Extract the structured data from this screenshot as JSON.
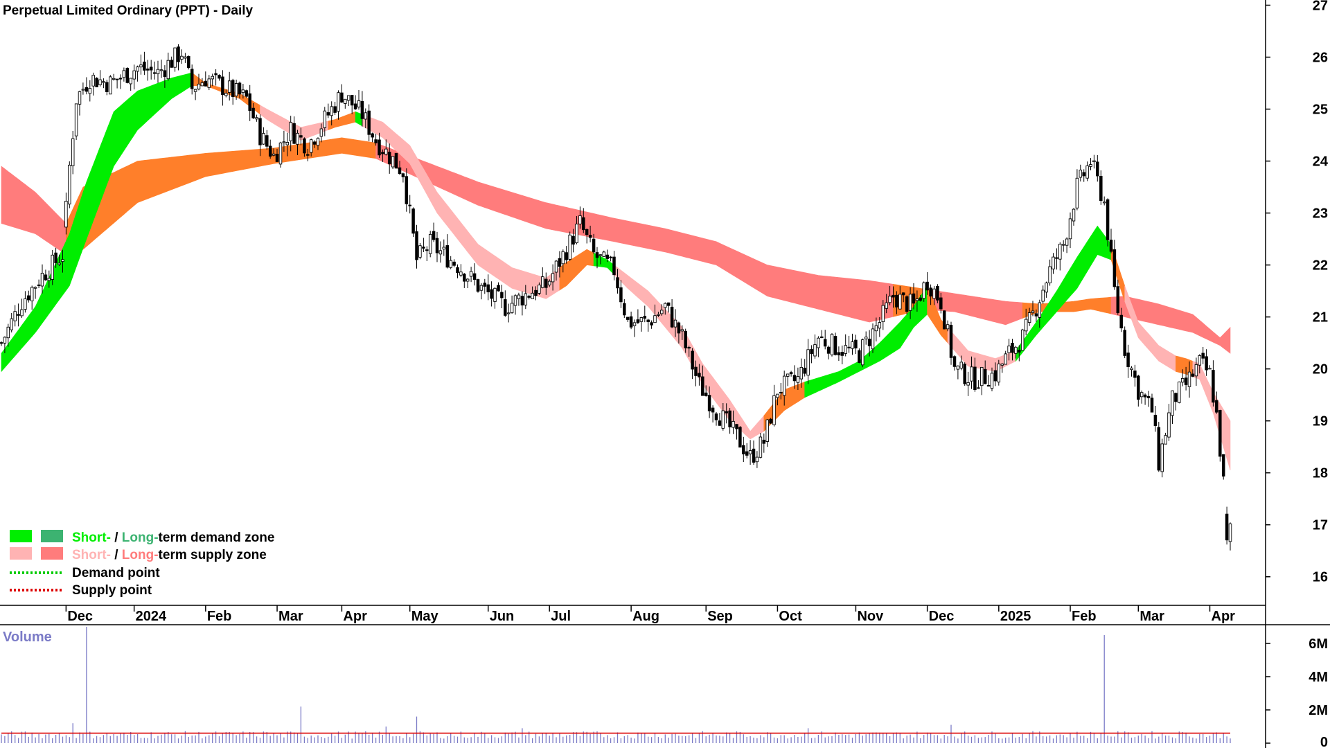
{
  "chart_data": {
    "type": "candlestick",
    "title": "Perpetual Limited Ordinary (PPT) - Daily",
    "y_ticks": [
      16,
      17,
      18,
      19,
      20,
      21,
      22,
      23,
      24,
      25,
      26,
      27
    ],
    "ylim": [
      15.45,
      27.1
    ],
    "x_ticks": [
      "Dec",
      "2024",
      "Feb",
      "Mar",
      "Apr",
      "May",
      "Jun",
      "Jul",
      "Aug",
      "Sep",
      "Oct",
      "Nov",
      "Dec",
      "2025",
      "Feb",
      "Mar",
      "Apr"
    ],
    "x_tick_index": [
      19,
      39,
      60,
      81,
      100,
      120,
      143,
      161,
      185,
      207,
      228,
      251,
      272,
      293,
      314,
      334,
      355
    ],
    "n_bars": 362,
    "price_anchors": [
      [
        0,
        20.5
      ],
      [
        6,
        21.3
      ],
      [
        12,
        21.8
      ],
      [
        18,
        22.2
      ],
      [
        20,
        23.9
      ],
      [
        22,
        25.2
      ],
      [
        26,
        25.6
      ],
      [
        32,
        25.5
      ],
      [
        40,
        25.8
      ],
      [
        46,
        25.7
      ],
      [
        53,
        26.1
      ],
      [
        56,
        25.4
      ],
      [
        60,
        25.6
      ],
      [
        66,
        25.4
      ],
      [
        72,
        25.2
      ],
      [
        76,
        24.5
      ],
      [
        80,
        24.1
      ],
      [
        85,
        24.6
      ],
      [
        90,
        24.3
      ],
      [
        95,
        24.8
      ],
      [
        100,
        25.3
      ],
      [
        106,
        24.9
      ],
      [
        110,
        24.4
      ],
      [
        114,
        24.1
      ],
      [
        118,
        23.8
      ],
      [
        122,
        22.1
      ],
      [
        126,
        22.4
      ],
      [
        134,
        22.0
      ],
      [
        140,
        21.6
      ],
      [
        148,
        21.2
      ],
      [
        156,
        21.5
      ],
      [
        160,
        21.6
      ],
      [
        166,
        22.3
      ],
      [
        170,
        22.8
      ],
      [
        174,
        22.2
      ],
      [
        180,
        21.9
      ],
      [
        184,
        20.9
      ],
      [
        190,
        20.9
      ],
      [
        195,
        21.2
      ],
      [
        200,
        20.6
      ],
      [
        205,
        19.7
      ],
      [
        210,
        19.2
      ],
      [
        216,
        18.7
      ],
      [
        220,
        18.3
      ],
      [
        224,
        18.6
      ],
      [
        228,
        19.6
      ],
      [
        234,
        19.8
      ],
      [
        240,
        20.6
      ],
      [
        246,
        20.4
      ],
      [
        252,
        20.3
      ],
      [
        258,
        20.9
      ],
      [
        262,
        21.4
      ],
      [
        268,
        21.2
      ],
      [
        272,
        21.7
      ],
      [
        276,
        21.3
      ],
      [
        280,
        20.0
      ],
      [
        286,
        19.8
      ],
      [
        292,
        19.9
      ],
      [
        296,
        20.3
      ],
      [
        300,
        20.6
      ],
      [
        304,
        21.2
      ],
      [
        308,
        21.9
      ],
      [
        312,
        22.4
      ],
      [
        316,
        23.5
      ],
      [
        320,
        24.0
      ],
      [
        324,
        23.2
      ],
      [
        327,
        21.5
      ],
      [
        330,
        20.4
      ],
      [
        334,
        19.6
      ],
      [
        338,
        19.2
      ],
      [
        340,
        18.2
      ],
      [
        344,
        19.4
      ],
      [
        348,
        19.7
      ],
      [
        352,
        20.1
      ],
      [
        355,
        19.9
      ],
      [
        357,
        19.1
      ],
      [
        359,
        17.8
      ],
      [
        360,
        16.6
      ],
      [
        361,
        16.9
      ]
    ],
    "volume": {
      "label": "Volume",
      "y_ticks": [
        "6M",
        "4M",
        "2M",
        "0"
      ],
      "y_values": [
        6000000,
        4000000,
        2000000,
        0
      ],
      "ylim": [
        0,
        7000000
      ],
      "typical": 500000,
      "average": 600000,
      "spikes": [
        [
          21,
          1200000
        ],
        [
          25,
          7000000
        ],
        [
          77,
          700000
        ],
        [
          88,
          2200000
        ],
        [
          113,
          1000000
        ],
        [
          122,
          1600000
        ],
        [
          153,
          900000
        ],
        [
          237,
          900000
        ],
        [
          279,
          1100000
        ],
        [
          324,
          6500000
        ],
        [
          346,
          700000
        ]
      ]
    },
    "bands": [
      {
        "name": "long-term",
        "color_demand": "#ff7f2a",
        "color_supply": "#ff7c7c",
        "upper": [
          [
            0,
            23.9
          ],
          [
            10,
            23.4
          ],
          [
            19,
            22.8
          ],
          [
            24,
            23.5
          ],
          [
            40,
            24.0
          ],
          [
            60,
            24.15
          ],
          [
            80,
            24.25
          ],
          [
            100,
            24.45
          ],
          [
            110,
            24.35
          ],
          [
            120,
            24.1
          ],
          [
            140,
            23.6
          ],
          [
            160,
            23.2
          ],
          [
            180,
            22.9
          ],
          [
            195,
            22.7
          ],
          [
            210,
            22.45
          ],
          [
            225,
            22.0
          ],
          [
            240,
            21.8
          ],
          [
            255,
            21.7
          ],
          [
            265,
            21.6
          ],
          [
            270,
            21.55
          ],
          [
            280,
            21.45
          ],
          [
            295,
            21.3
          ],
          [
            305,
            21.25
          ],
          [
            315,
            21.3
          ],
          [
            320,
            21.35
          ],
          [
            330,
            21.4
          ],
          [
            340,
            21.25
          ],
          [
            350,
            21.05
          ],
          [
            358,
            20.6
          ],
          [
            361,
            20.8
          ]
        ],
        "lower": [
          [
            0,
            22.8
          ],
          [
            10,
            22.6
          ],
          [
            19,
            22.2
          ],
          [
            24,
            22.3
          ],
          [
            40,
            23.2
          ],
          [
            60,
            23.7
          ],
          [
            80,
            23.95
          ],
          [
            100,
            24.15
          ],
          [
            110,
            24.05
          ],
          [
            120,
            23.75
          ],
          [
            140,
            23.15
          ],
          [
            160,
            22.7
          ],
          [
            180,
            22.45
          ],
          [
            195,
            22.25
          ],
          [
            210,
            22.0
          ],
          [
            225,
            21.4
          ],
          [
            240,
            21.15
          ],
          [
            255,
            20.9
          ],
          [
            265,
            21.05
          ],
          [
            270,
            21.15
          ],
          [
            280,
            21.1
          ],
          [
            295,
            20.85
          ],
          [
            305,
            21.1
          ],
          [
            315,
            21.1
          ],
          [
            320,
            21.15
          ],
          [
            330,
            21.0
          ],
          [
            340,
            20.85
          ],
          [
            350,
            20.7
          ],
          [
            358,
            20.45
          ],
          [
            361,
            20.3
          ]
        ],
        "segments": [
          [
            "supply",
            0,
            19
          ],
          [
            "demand",
            19,
            110
          ],
          [
            "supply",
            110,
            262
          ],
          [
            "demand",
            262,
            272
          ],
          [
            "supply",
            272,
            300
          ],
          [
            "demand",
            300,
            326
          ],
          [
            "supply",
            326,
            361
          ]
        ]
      },
      {
        "name": "short-term",
        "color_demand": "#00ee00",
        "color_supply": "#ffb3b3",
        "color_demand_weak": "#ff7f2a",
        "upper": [
          [
            0,
            20.3
          ],
          [
            10,
            21.2
          ],
          [
            20,
            22.6
          ],
          [
            25,
            23.6
          ],
          [
            33,
            24.95
          ],
          [
            40,
            25.35
          ],
          [
            50,
            25.6
          ],
          [
            56,
            25.7
          ],
          [
            60,
            25.5
          ],
          [
            70,
            25.3
          ],
          [
            78,
            25.0
          ],
          [
            88,
            24.65
          ],
          [
            98,
            24.8
          ],
          [
            104,
            24.95
          ],
          [
            112,
            24.75
          ],
          [
            120,
            24.3
          ],
          [
            128,
            23.4
          ],
          [
            140,
            22.4
          ],
          [
            150,
            21.95
          ],
          [
            160,
            21.75
          ],
          [
            166,
            22.05
          ],
          [
            172,
            22.3
          ],
          [
            178,
            22.1
          ],
          [
            184,
            21.8
          ],
          [
            190,
            21.5
          ],
          [
            200,
            20.8
          ],
          [
            206,
            20.1
          ],
          [
            214,
            19.4
          ],
          [
            220,
            18.8
          ],
          [
            224,
            19.1
          ],
          [
            230,
            19.6
          ],
          [
            236,
            19.75
          ],
          [
            246,
            19.95
          ],
          [
            252,
            20.15
          ],
          [
            258,
            20.5
          ],
          [
            264,
            20.9
          ],
          [
            268,
            21.2
          ],
          [
            272,
            21.6
          ],
          [
            276,
            20.95
          ],
          [
            284,
            20.35
          ],
          [
            292,
            20.2
          ],
          [
            298,
            20.35
          ],
          [
            304,
            20.9
          ],
          [
            310,
            21.5
          ],
          [
            316,
            22.15
          ],
          [
            322,
            22.75
          ],
          [
            326,
            22.4
          ],
          [
            330,
            21.6
          ],
          [
            334,
            20.9
          ],
          [
            340,
            20.45
          ],
          [
            345,
            20.25
          ],
          [
            348,
            20.2
          ],
          [
            352,
            20.1
          ],
          [
            356,
            19.55
          ],
          [
            361,
            19.0
          ]
        ],
        "lower": [
          [
            0,
            19.95
          ],
          [
            10,
            20.7
          ],
          [
            20,
            21.6
          ],
          [
            25,
            22.5
          ],
          [
            33,
            23.9
          ],
          [
            40,
            24.6
          ],
          [
            50,
            25.2
          ],
          [
            56,
            25.45
          ],
          [
            60,
            25.45
          ],
          [
            70,
            25.2
          ],
          [
            78,
            24.8
          ],
          [
            88,
            24.4
          ],
          [
            98,
            24.65
          ],
          [
            104,
            24.75
          ],
          [
            112,
            24.45
          ],
          [
            120,
            23.95
          ],
          [
            128,
            23.0
          ],
          [
            140,
            22.0
          ],
          [
            150,
            21.55
          ],
          [
            160,
            21.35
          ],
          [
            166,
            21.6
          ],
          [
            172,
            22.0
          ],
          [
            178,
            21.95
          ],
          [
            184,
            21.55
          ],
          [
            190,
            21.2
          ],
          [
            200,
            20.4
          ],
          [
            206,
            19.7
          ],
          [
            214,
            19.0
          ],
          [
            220,
            18.65
          ],
          [
            224,
            18.8
          ],
          [
            230,
            19.2
          ],
          [
            236,
            19.45
          ],
          [
            246,
            19.75
          ],
          [
            252,
            19.95
          ],
          [
            258,
            20.15
          ],
          [
            264,
            20.4
          ],
          [
            268,
            20.8
          ],
          [
            272,
            21.05
          ],
          [
            276,
            20.65
          ],
          [
            284,
            20.05
          ],
          [
            292,
            19.95
          ],
          [
            298,
            20.15
          ],
          [
            304,
            20.65
          ],
          [
            310,
            21.1
          ],
          [
            316,
            21.55
          ],
          [
            322,
            22.2
          ],
          [
            326,
            22.1
          ],
          [
            330,
            21.3
          ],
          [
            334,
            20.6
          ],
          [
            340,
            20.15
          ],
          [
            345,
            19.95
          ],
          [
            348,
            19.9
          ],
          [
            352,
            19.8
          ],
          [
            356,
            19.15
          ],
          [
            361,
            18.05
          ]
        ],
        "segments": [
          [
            "demand",
            0,
            56
          ],
          [
            "demand_weak",
            56,
            76
          ],
          [
            "supply",
            76,
            96
          ],
          [
            "demand_weak",
            96,
            104
          ],
          [
            "demand",
            104,
            106
          ],
          [
            "supply",
            106,
            164
          ],
          [
            "demand_weak",
            164,
            174
          ],
          [
            "demand",
            174,
            180
          ],
          [
            "supply",
            180,
            224
          ],
          [
            "demand_weak",
            224,
            236
          ],
          [
            "demand",
            236,
            272
          ],
          [
            "demand_weak",
            272,
            278
          ],
          [
            "supply",
            278,
            298
          ],
          [
            "demand",
            298,
            326
          ],
          [
            "demand_weak",
            326,
            330
          ],
          [
            "supply",
            330,
            345
          ],
          [
            "demand_weak",
            345,
            350
          ],
          [
            "supply",
            350,
            361
          ]
        ]
      }
    ],
    "legend": [
      {
        "id": "demand",
        "swatches": [
          "#00ee00",
          "#3cb371"
        ],
        "short": "Short-",
        "sep": " / ",
        "long": "Long-",
        "rest": "term demand zone",
        "short_color": "#00ee00",
        "long_color": "#3cb371"
      },
      {
        "id": "supply",
        "swatches": [
          "#ffb3b3",
          "#ff7c7c"
        ],
        "short": "Short-",
        "sep": " / ",
        "long": "Long-",
        "rest": "term supply zone",
        "short_color": "#ffb3b3",
        "long_color": "#ff7c7c"
      },
      {
        "id": "demand-point",
        "line_color": "#00cc00",
        "text": "Demand point"
      },
      {
        "id": "supply-point",
        "line_color": "#dd0000",
        "text": "Supply point"
      }
    ],
    "colors": {
      "up_candle": "#ffffff",
      "down_candle": "#000000",
      "volume_bar": "#7b7bc7",
      "volume_avg": "#dd0000",
      "volume_label": "#7b7bc7"
    }
  }
}
